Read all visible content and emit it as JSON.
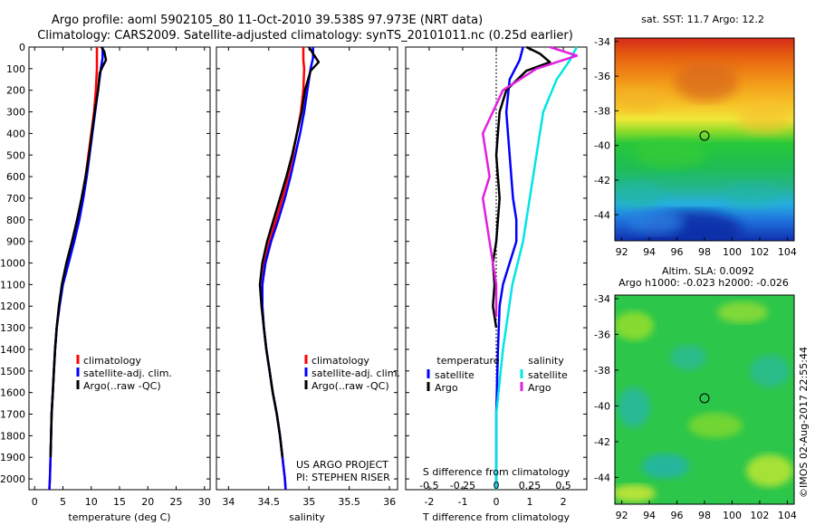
{
  "header": {
    "line1": "Argo profile: aoml 5902105_80 11-Oct-2010 39.538S 97.973E (NRT data)",
    "line2": "Climatology: CARS2009. Satellite-adjusted climatology: synTS_20101011.nc (0.25d earlier)"
  },
  "colors": {
    "climatology": "#ff0000",
    "satellite": "#0000ff",
    "argo": "#000000",
    "salinity_satellite": "#00e5e5",
    "salinity_argo": "#e020e0"
  },
  "chart_data": [
    {
      "type": "line",
      "name": "temperature",
      "xlabel": "temperature (deg C)",
      "xlim": [
        -1,
        31
      ],
      "ylim": [
        2050,
        0
      ],
      "xticks": [
        0,
        5,
        10,
        15,
        20,
        25,
        30
      ],
      "yticks": [
        0,
        100,
        200,
        300,
        400,
        500,
        600,
        700,
        800,
        900,
        1000,
        1100,
        1200,
        1300,
        1400,
        1500,
        1600,
        1700,
        1800,
        1900,
        2000
      ],
      "legend": [
        "climatology",
        "satellite-adj. clim.",
        "Argo(..raw -QC)"
      ],
      "series": [
        {
          "name": "climatology",
          "color": "#ff0000",
          "points": [
            [
              11.0,
              0
            ],
            [
              11.0,
              50
            ],
            [
              11.0,
              100
            ],
            [
              10.8,
              200
            ],
            [
              10.5,
              300
            ],
            [
              10.0,
              400
            ],
            [
              9.5,
              500
            ],
            [
              9.0,
              600
            ],
            [
              8.4,
              700
            ],
            [
              7.6,
              800
            ],
            [
              6.8,
              900
            ],
            [
              5.8,
              1000
            ],
            [
              4.9,
              1100
            ],
            [
              4.3,
              1200
            ],
            [
              3.9,
              1300
            ],
            [
              3.6,
              1400
            ],
            [
              3.4,
              1500
            ],
            [
              3.2,
              1600
            ],
            [
              3.0,
              1700
            ],
            [
              2.9,
              1800
            ],
            [
              2.8,
              1900
            ],
            [
              2.7,
              2000
            ],
            [
              2.6,
              2050
            ]
          ]
        },
        {
          "name": "satellite-adj. clim.",
          "color": "#0000ff",
          "points": [
            [
              12.0,
              0
            ],
            [
              12.0,
              50
            ],
            [
              11.7,
              100
            ],
            [
              11.2,
              200
            ],
            [
              10.7,
              300
            ],
            [
              10.2,
              400
            ],
            [
              9.7,
              500
            ],
            [
              9.2,
              600
            ],
            [
              8.6,
              700
            ],
            [
              7.9,
              800
            ],
            [
              7.0,
              900
            ],
            [
              6.0,
              1000
            ],
            [
              5.0,
              1100
            ],
            [
              4.4,
              1200
            ],
            [
              3.9,
              1300
            ],
            [
              3.6,
              1400
            ],
            [
              3.4,
              1500
            ],
            [
              3.2,
              1600
            ],
            [
              3.0,
              1700
            ],
            [
              2.9,
              1800
            ],
            [
              2.8,
              1900
            ],
            [
              2.7,
              2000
            ],
            [
              2.6,
              2050
            ]
          ]
        },
        {
          "name": "Argo(..raw -QC)",
          "color": "#000000",
          "points": [
            [
              11.8,
              0
            ],
            [
              12.3,
              20
            ],
            [
              12.6,
              60
            ],
            [
              12.0,
              90
            ],
            [
              11.5,
              120
            ],
            [
              11.2,
              200
            ],
            [
              10.6,
              300
            ],
            [
              10.1,
              400
            ],
            [
              9.6,
              500
            ],
            [
              9.0,
              600
            ],
            [
              8.3,
              700
            ],
            [
              7.5,
              800
            ],
            [
              6.6,
              900
            ],
            [
              5.6,
              1000
            ],
            [
              4.8,
              1100
            ],
            [
              4.3,
              1200
            ],
            [
              3.9,
              1300
            ],
            [
              3.6,
              1400
            ],
            [
              3.4,
              1500
            ],
            [
              3.2,
              1600
            ],
            [
              3.0,
              1700
            ],
            [
              2.9,
              1800
            ],
            [
              2.8,
              1900
            ]
          ]
        }
      ]
    },
    {
      "type": "line",
      "name": "salinity",
      "xlabel": "salinity",
      "xlim": [
        33.85,
        36.1
      ],
      "ylim": [
        2050,
        0
      ],
      "xticks": [
        34,
        34.5,
        35,
        35.5,
        36
      ],
      "legend": [
        "climatology",
        "satellite-adj. clim.",
        "Argo(..raw -QC)"
      ],
      "annotation": [
        "US ARGO PROJECT",
        "PI: STEPHEN RISER"
      ],
      "series": [
        {
          "name": "climatology",
          "color": "#ff0000",
          "points": [
            [
              34.93,
              0
            ],
            [
              34.93,
              60
            ],
            [
              34.94,
              100
            ],
            [
              34.93,
              200
            ],
            [
              34.9,
              300
            ],
            [
              34.85,
              400
            ],
            [
              34.8,
              500
            ],
            [
              34.74,
              600
            ],
            [
              34.67,
              700
            ],
            [
              34.59,
              800
            ],
            [
              34.51,
              900
            ],
            [
              34.45,
              1000
            ],
            [
              34.42,
              1100
            ],
            [
              34.42,
              1200
            ],
            [
              34.44,
              1300
            ],
            [
              34.47,
              1400
            ],
            [
              34.51,
              1500
            ],
            [
              34.55,
              1600
            ],
            [
              34.6,
              1700
            ],
            [
              34.64,
              1800
            ],
            [
              34.67,
              1900
            ],
            [
              34.7,
              2000
            ],
            [
              34.71,
              2050
            ]
          ]
        },
        {
          "name": "satellite-adj. clim.",
          "color": "#0000ff",
          "points": [
            [
              35.05,
              0
            ],
            [
              35.05,
              50
            ],
            [
              35.02,
              100
            ],
            [
              34.98,
              200
            ],
            [
              34.94,
              300
            ],
            [
              34.89,
              400
            ],
            [
              34.83,
              500
            ],
            [
              34.77,
              600
            ],
            [
              34.7,
              700
            ],
            [
              34.62,
              800
            ],
            [
              34.53,
              900
            ],
            [
              34.46,
              1000
            ],
            [
              34.42,
              1100
            ],
            [
              34.42,
              1200
            ],
            [
              34.44,
              1300
            ],
            [
              34.47,
              1400
            ],
            [
              34.51,
              1500
            ],
            [
              34.55,
              1600
            ],
            [
              34.6,
              1700
            ],
            [
              34.64,
              1800
            ],
            [
              34.67,
              1900
            ],
            [
              34.7,
              2000
            ],
            [
              34.71,
              2050
            ]
          ]
        },
        {
          "name": "Argo(..raw -QC)",
          "color": "#000000",
          "points": [
            [
              35.0,
              0
            ],
            [
              35.05,
              30
            ],
            [
              35.12,
              70
            ],
            [
              35.02,
              110
            ],
            [
              34.95,
              200
            ],
            [
              34.91,
              300
            ],
            [
              34.85,
              400
            ],
            [
              34.79,
              500
            ],
            [
              34.72,
              600
            ],
            [
              34.64,
              700
            ],
            [
              34.56,
              800
            ],
            [
              34.48,
              900
            ],
            [
              34.42,
              1000
            ],
            [
              34.39,
              1100
            ],
            [
              34.41,
              1200
            ],
            [
              34.44,
              1300
            ],
            [
              34.47,
              1400
            ],
            [
              34.51,
              1500
            ],
            [
              34.55,
              1600
            ],
            [
              34.6,
              1700
            ],
            [
              34.64,
              1800
            ],
            [
              34.67,
              1900
            ]
          ]
        }
      ]
    },
    {
      "type": "line",
      "name": "difference",
      "xlabel": "T difference from climatology",
      "x2label": "S difference from climatology",
      "xlim": [
        -2.7,
        2.7
      ],
      "ylim": [
        2050,
        0
      ],
      "xticks": [
        -2,
        -1,
        0,
        1,
        2
      ],
      "x2ticks": [
        -0.5,
        -0.25,
        0,
        0.25,
        0.5
      ],
      "legend_title_left": "temperature",
      "legend_title_right": "salinity",
      "legend": [
        "satellite",
        "Argo",
        "satellite",
        "Argo"
      ],
      "series": [
        {
          "name": "temperature satellite",
          "color": "#0000ff",
          "points": [
            [
              0.8,
              0
            ],
            [
              0.7,
              60
            ],
            [
              0.4,
              150
            ],
            [
              0.3,
              300
            ],
            [
              0.4,
              500
            ],
            [
              0.5,
              700
            ],
            [
              0.6,
              800
            ],
            [
              0.6,
              900
            ],
            [
              0.4,
              1000
            ],
            [
              0.2,
              1100
            ],
            [
              0.1,
              1200
            ],
            [
              0.05,
              1400
            ],
            [
              0,
              1700
            ],
            [
              0,
              2050
            ]
          ]
        },
        {
          "name": "temperature Argo",
          "color": "#000000",
          "points": [
            [
              0.9,
              0
            ],
            [
              1.3,
              30
            ],
            [
              1.6,
              70
            ],
            [
              0.9,
              110
            ],
            [
              0.3,
              200
            ],
            [
              0.1,
              300
            ],
            [
              0.0,
              500
            ],
            [
              0.1,
              700
            ],
            [
              0.0,
              900
            ],
            [
              -0.1,
              1000
            ],
            [
              -0.05,
              1100
            ],
            [
              -0.1,
              1200
            ],
            [
              0.0,
              1300
            ]
          ]
        },
        {
          "name": "salinity satellite",
          "color": "#00e5e5",
          "points": [
            [
              0.6,
              0
            ],
            [
              0.55,
              60
            ],
            [
              0.45,
              150
            ],
            [
              0.35,
              300
            ],
            [
              0.3,
              500
            ],
            [
              0.25,
              700
            ],
            [
              0.2,
              900
            ],
            [
              0.12,
              1100
            ],
            [
              0.05,
              1400
            ],
            [
              0,
              1700
            ],
            [
              0,
              2050
            ]
          ]
        },
        {
          "name": "salinity Argo",
          "color": "#e020e0",
          "points": [
            [
              0.4,
              0
            ],
            [
              0.6,
              40
            ],
            [
              0.3,
              100
            ],
            [
              0.05,
              200
            ],
            [
              -0.1,
              400
            ],
            [
              -0.05,
              600
            ],
            [
              -0.1,
              700
            ],
            [
              -0.05,
              900
            ],
            [
              0.0,
              1100
            ],
            [
              0.0,
              1250
            ]
          ]
        }
      ]
    },
    {
      "type": "heatmap",
      "name": "sst_map",
      "title": "sat. SST: 11.7 Argo: 12.2",
      "xlim": [
        91.5,
        104.5
      ],
      "ylim": [
        -45.5,
        -33.8
      ],
      "xticks": [
        92,
        94,
        96,
        98,
        100,
        102,
        104
      ],
      "yticks": [
        -34,
        -36,
        -38,
        -40,
        -42,
        -44
      ],
      "marker": [
        97.973,
        -39.538
      ]
    },
    {
      "type": "heatmap",
      "name": "sla_map",
      "title": "Altim. SLA: 0.0092",
      "subtitle": "Argo h1000: -0.023 h2000: -0.026",
      "xlim": [
        91.5,
        104.5
      ],
      "ylim": [
        -45.5,
        -33.8
      ],
      "xticks": [
        92,
        94,
        96,
        98,
        100,
        102,
        104
      ],
      "yticks": [
        -34,
        -36,
        -38,
        -40,
        -42,
        -44
      ],
      "marker": [
        97.973,
        -39.538
      ]
    }
  ],
  "footer": {
    "credit": "©IMOS 02-Aug-2017 22:55:44"
  }
}
